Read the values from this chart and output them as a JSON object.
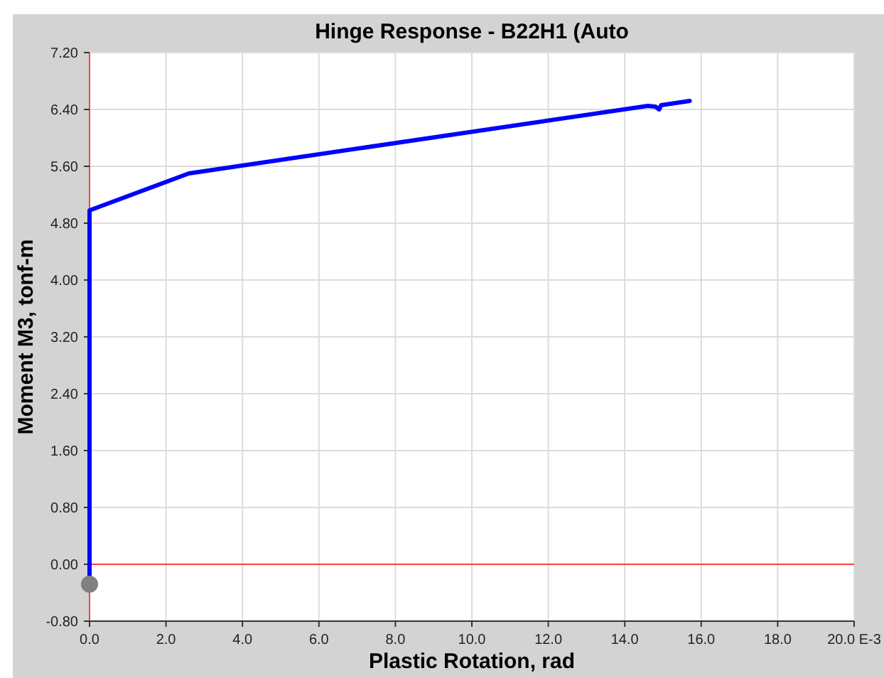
{
  "chart_data": {
    "type": "line",
    "title": "Hinge Response - B22H1 (Auto",
    "xlabel": "Plastic Rotation, rad",
    "ylabel": "Moment M3, tonf-m",
    "xlim": [
      0,
      20
    ],
    "xticks": [
      {
        "value": 0,
        "label": "0.0"
      },
      {
        "value": 2,
        "label": "2.0"
      },
      {
        "value": 4,
        "label": "4.0"
      },
      {
        "value": 6,
        "label": "6.0"
      },
      {
        "value": 8,
        "label": "8.0"
      },
      {
        "value": 10,
        "label": "10.0"
      },
      {
        "value": 12,
        "label": "12.0"
      },
      {
        "value": 14,
        "label": "14.0"
      },
      {
        "value": 16,
        "label": "16.0"
      },
      {
        "value": 18,
        "label": "18.0"
      },
      {
        "value": 20,
        "label": "20.0 E-3"
      }
    ],
    "ylim": [
      -0.8,
      7.2
    ],
    "yticks": [
      {
        "value": -0.8,
        "label": "-0.80"
      },
      {
        "value": 0,
        "label": "0.00"
      },
      {
        "value": 0.8,
        "label": "0.80"
      },
      {
        "value": 1.6,
        "label": "1.60"
      },
      {
        "value": 2.4,
        "label": "2.40"
      },
      {
        "value": 3.2,
        "label": "3.20"
      },
      {
        "value": 4,
        "label": "4.00"
      },
      {
        "value": 4.8,
        "label": "4.80"
      },
      {
        "value": 5.6,
        "label": "5.60"
      },
      {
        "value": 6.4,
        "label": "6.40"
      },
      {
        "value": 7.2,
        "label": "7.20"
      }
    ],
    "grid": true,
    "ref_lines": [
      {
        "axis": "y",
        "value": 0,
        "color": "#ff4040"
      }
    ],
    "series": [
      {
        "color": "#0000ff",
        "x": [
          0,
          0,
          2.6,
          14.6,
          14.8,
          14.9,
          14.95,
          15.7
        ],
        "values": [
          -0.3,
          4.98,
          5.5,
          6.45,
          6.44,
          6.4,
          6.46,
          6.52
        ]
      },
      {
        "type": "scatter",
        "color": "#808080",
        "marker": "circle",
        "x": [
          0
        ],
        "values": [
          -0.28
        ]
      }
    ]
  }
}
